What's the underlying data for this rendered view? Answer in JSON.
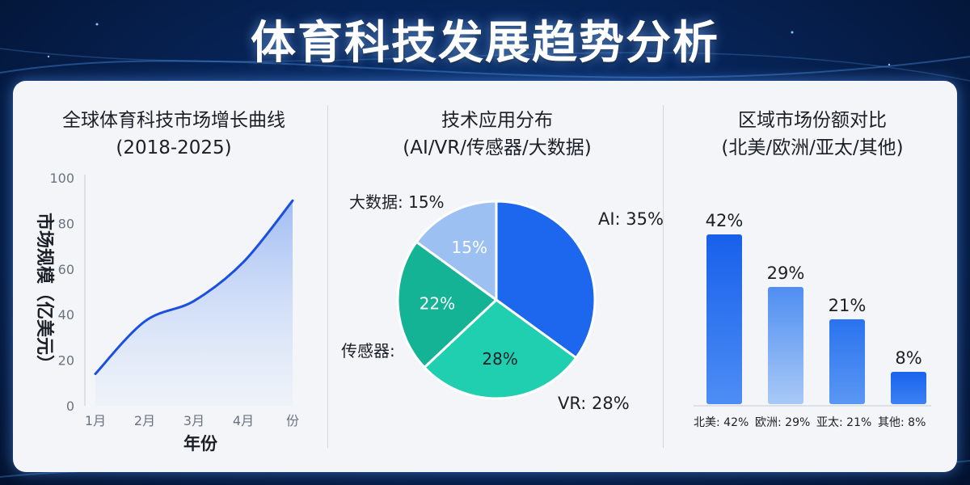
{
  "page_title": "体育科技发展趋势分析",
  "colors": {
    "accent": "#1a5fe8",
    "teal": "#19c2a6",
    "light_blue": "#9cc0f2",
    "panel_bg": "#f3f5f8"
  },
  "chart_data": [
    {
      "type": "area",
      "title": "全球体育科技市场增长曲线",
      "subtitle": "(2018-2025)",
      "xlabel": "年份",
      "ylabel": "市场规模（亿美元）",
      "categories": [
        "1月",
        "2月",
        "3月",
        "4月",
        "份"
      ],
      "x": [
        1,
        2,
        3,
        4,
        5
      ],
      "series": [
        {
          "values": [
            14,
            37,
            46,
            63,
            90
          ]
        }
      ],
      "ylim": [
        0,
        100
      ],
      "yticks": [
        0,
        20,
        40,
        60,
        80,
        100
      ],
      "grid": false
    },
    {
      "type": "pie",
      "title": "技术应用分布",
      "subtitle": "(AI/VR/传感器/大数据)",
      "labels": [
        "AI",
        "VR",
        "传感器",
        "大数据"
      ],
      "values": [
        35,
        28,
        22,
        15
      ],
      "outer_labels": [
        "AI: 35%",
        "VR: 28%",
        "传感器:",
        "大数据: 15%"
      ],
      "inner_labels": [
        "",
        "28%",
        "22%",
        "15%"
      ],
      "colors": [
        "#1c67ee",
        "#20cfb0",
        "#14b396",
        "#9cc0f2"
      ]
    },
    {
      "type": "bar",
      "title": "区域市场份额对比",
      "subtitle": "(北美/欧洲/亚太/其他)",
      "categories": [
        "北美",
        "欧洲",
        "亚太",
        "其他"
      ],
      "values": [
        42,
        29,
        21,
        8
      ],
      "value_labels": [
        "42%",
        "29%",
        "21%",
        "8%"
      ],
      "x_labels": [
        "北美: 42%",
        "欧洲: 29%",
        "亚太: 21%",
        "其他: 8%"
      ],
      "ylim": [
        0,
        50
      ],
      "grid": false
    }
  ]
}
